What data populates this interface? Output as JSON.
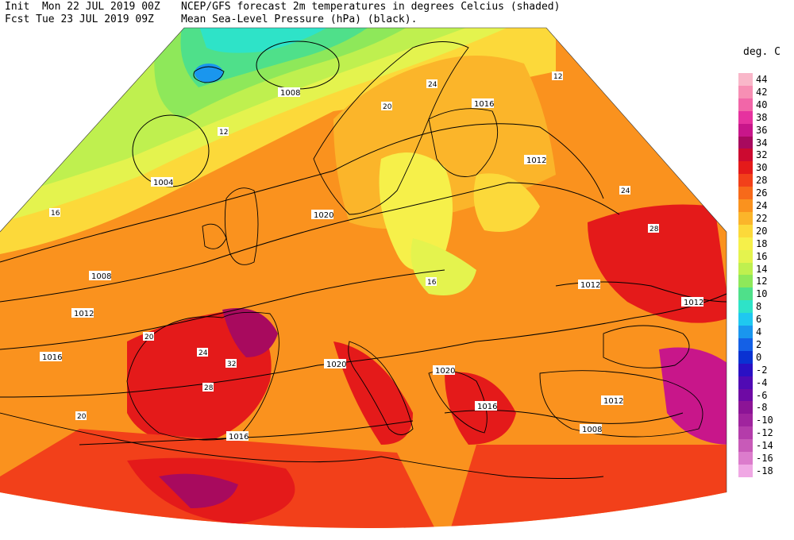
{
  "header": {
    "init_label": "Init",
    "init_value": "Mon 22 JUL 2019 00Z",
    "fcst_label": "Fcst",
    "fcst_value": "Tue 23 JUL 2019 09Z",
    "title_line1": "NCEP/GFS forecast 2m temperatures in degrees Celcius (shaded)",
    "title_line2": "Mean Sea-Level Pressure (hPa) (black)."
  },
  "legend": {
    "title": "deg. C",
    "entries": [
      {
        "label": "44",
        "color": "#f9b7c9"
      },
      {
        "label": "42",
        "color": "#f78fb4"
      },
      {
        "label": "40",
        "color": "#f266a8"
      },
      {
        "label": "38",
        "color": "#e6329f"
      },
      {
        "label": "36",
        "color": "#c8168a"
      },
      {
        "label": "34",
        "color": "#a80a5e"
      },
      {
        "label": "32",
        "color": "#cc0a30"
      },
      {
        "label": "30",
        "color": "#e41a1a"
      },
      {
        "label": "28",
        "color": "#f2401a"
      },
      {
        "label": "26",
        "color": "#f76a1a"
      },
      {
        "label": "24",
        "color": "#fa921e"
      },
      {
        "label": "22",
        "color": "#fbb52a"
      },
      {
        "label": "20",
        "color": "#fcd93a"
      },
      {
        "label": "18",
        "color": "#f6f04a"
      },
      {
        "label": "16",
        "color": "#e4f34e"
      },
      {
        "label": "14",
        "color": "#bff04f"
      },
      {
        "label": "12",
        "color": "#8ee85a"
      },
      {
        "label": "10",
        "color": "#4fe08a"
      },
      {
        "label": "8",
        "color": "#2ee3c8"
      },
      {
        "label": "6",
        "color": "#1fc8f0"
      },
      {
        "label": "4",
        "color": "#1a96ee"
      },
      {
        "label": "2",
        "color": "#1460e6"
      },
      {
        "label": "0",
        "color": "#0a32d2"
      },
      {
        "label": "-2",
        "color": "#2a10c4"
      },
      {
        "label": "-4",
        "color": "#500ab4"
      },
      {
        "label": "-6",
        "color": "#6e0aa4"
      },
      {
        "label": "-8",
        "color": "#8c1496"
      },
      {
        "label": "-10",
        "color": "#a0249e"
      },
      {
        "label": "-12",
        "color": "#b43caa"
      },
      {
        "label": "-14",
        "color": "#c85ab8"
      },
      {
        "label": "-16",
        "color": "#dc7ccc"
      },
      {
        "label": "-18",
        "color": "#f0a8e4"
      }
    ]
  },
  "isobar_labels": [
    "1008",
    "1004",
    "1008",
    "1012",
    "1016",
    "1016",
    "1020",
    "1016",
    "1012",
    "1012",
    "1020",
    "1020",
    "1016",
    "1012",
    "1008",
    "1012"
  ],
  "temperature_labels": [
    "12",
    "16",
    "20",
    "24",
    "28",
    "32",
    "24",
    "20",
    "16",
    "12",
    "28",
    "24",
    "20"
  ]
}
